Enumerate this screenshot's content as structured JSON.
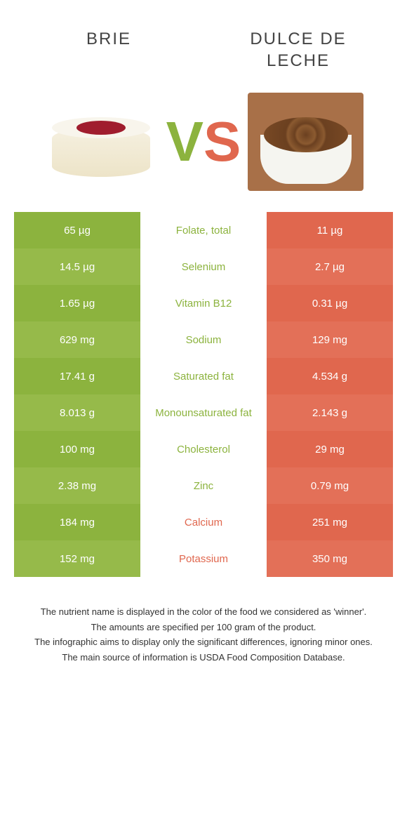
{
  "colors": {
    "green_a": "#8cb33e",
    "green_b": "#96ba4a",
    "orange_a": "#e0674e",
    "orange_b": "#e37058",
    "text_green": "#8cb33e",
    "text_orange": "#e0674e"
  },
  "food_a": {
    "title": "BRIE"
  },
  "food_b": {
    "title": "DULCE DE LECHE"
  },
  "vs": {
    "v": "V",
    "s": "S"
  },
  "rows": [
    {
      "left": "65 µg",
      "mid": "Folate, total",
      "right": "11 µg",
      "winner": "a"
    },
    {
      "left": "14.5 µg",
      "mid": "Selenium",
      "right": "2.7 µg",
      "winner": "a"
    },
    {
      "left": "1.65 µg",
      "mid": "Vitamin B12",
      "right": "0.31 µg",
      "winner": "a"
    },
    {
      "left": "629 mg",
      "mid": "Sodium",
      "right": "129 mg",
      "winner": "a"
    },
    {
      "left": "17.41 g",
      "mid": "Saturated fat",
      "right": "4.534 g",
      "winner": "a"
    },
    {
      "left": "8.013 g",
      "mid": "Monounsaturated fat",
      "right": "2.143 g",
      "winner": "a"
    },
    {
      "left": "100 mg",
      "mid": "Cholesterol",
      "right": "29 mg",
      "winner": "a"
    },
    {
      "left": "2.38 mg",
      "mid": "Zinc",
      "right": "0.79 mg",
      "winner": "a"
    },
    {
      "left": "184 mg",
      "mid": "Calcium",
      "right": "251 mg",
      "winner": "b"
    },
    {
      "left": "152 mg",
      "mid": "Potassium",
      "right": "350 mg",
      "winner": "b"
    }
  ],
  "footer": {
    "l1": "The nutrient name is displayed in the color of the food we considered as 'winner'.",
    "l2": "The amounts are specified per 100 gram of the product.",
    "l3": "The infographic aims to display only the significant differences, ignoring minor ones.",
    "l4": "The main source of information is USDA Food Composition Database."
  }
}
